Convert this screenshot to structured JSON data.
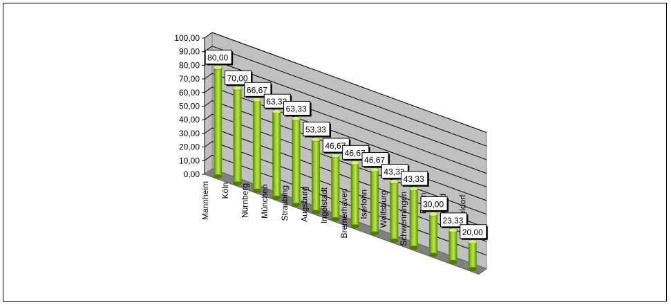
{
  "chart_data": {
    "type": "bar",
    "style": "3d-cylinder",
    "categories": [
      "Mannheim",
      "Köln",
      "Nürnberg",
      "München",
      "Straubing",
      "Augsburg",
      "Ingolstadt",
      "Bremerhaven",
      "Iserlohn",
      "Wolfsburg",
      "Schwenningen",
      "Berlin",
      "Krefeld",
      "Düsseldorf"
    ],
    "values": [
      80.0,
      70.0,
      66.67,
      63.33,
      63.33,
      53.33,
      46.67,
      46.67,
      46.67,
      43.33,
      43.33,
      30.0,
      23.33,
      20.0
    ],
    "value_labels": [
      "80,00",
      "70,00",
      "66,67",
      "63,33",
      "63,33",
      "53,33",
      "46,67",
      "46,67",
      "46,67",
      "43,33",
      "43,33",
      "30,00",
      "23,33",
      "20,00"
    ],
    "y_ticks": [
      "0,00",
      "10,00",
      "20,00",
      "30,00",
      "40,00",
      "50,00",
      "60,00",
      "70,00",
      "80,00",
      "90,00",
      "100,00"
    ],
    "ylim": [
      0,
      100
    ],
    "grid": true,
    "legend": "none",
    "colors": {
      "bar_light": "#b5e03a",
      "bar_mid": "#8fc31f",
      "bar_dark": "#5a8a00",
      "bar_top": "#d4f07a",
      "wall": "#c0c0c0",
      "floor": "#808080",
      "gridline": "#000000",
      "label_box": "#ffffff"
    }
  }
}
